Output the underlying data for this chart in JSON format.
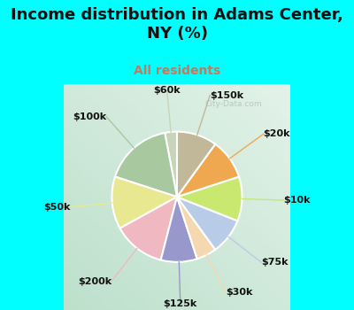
{
  "title": "Income distribution in Adams Center,\nNY (%)",
  "subtitle": "All residents",
  "title_color": "#111111",
  "subtitle_color": "#cc7755",
  "bg_cyan": "#00FFFF",
  "chart_bg": "#d8ede0",
  "labels": [
    "$60k",
    "$100k",
    "$50k",
    "$200k",
    "$125k",
    "$30k",
    "$75k",
    "$10k",
    "$20k",
    "$150k"
  ],
  "values": [
    3,
    17,
    13,
    13,
    9,
    5,
    9,
    11,
    10,
    10
  ],
  "colors": [
    "#c8d4b8",
    "#a8c8a0",
    "#e8e890",
    "#f0b8c0",
    "#9898cc",
    "#f5d8b0",
    "#b8cce8",
    "#c8e870",
    "#f0a850",
    "#c0b898"
  ],
  "line_colors": [
    "#c8d4b8",
    "#a8c8a0",
    "#e8e890",
    "#f0b8c0",
    "#9898cc",
    "#f5d8b0",
    "#b8cce8",
    "#c8e870",
    "#f0a850",
    "#c0b898"
  ],
  "label_fontsize": 8,
  "label_color": "#111111",
  "title_fontsize": 13,
  "subtitle_fontsize": 10,
  "watermark": "City-Data.com"
}
